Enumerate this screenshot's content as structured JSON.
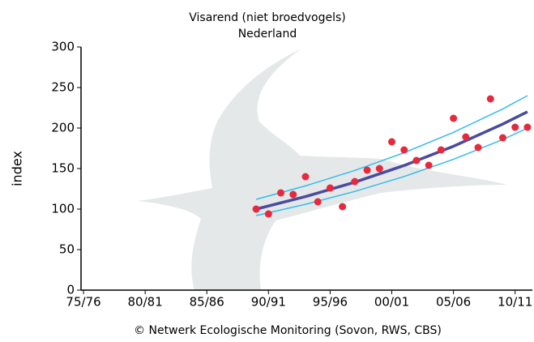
{
  "chart_data": {
    "type": "scatter",
    "title": "Visarend (niet broedvogels)",
    "subtitle": "Nederland",
    "y_label": "index",
    "footer": "© Netwerk Ecologische Monitoring (Sovon, RWS, CBS)",
    "x": [
      89,
      90,
      91,
      92,
      93,
      94,
      95,
      96,
      97,
      98,
      99,
      100,
      101,
      102,
      103,
      104,
      105,
      106,
      107,
      108,
      109,
      110,
      111
    ],
    "values": [
      100,
      94,
      120,
      118,
      140,
      109,
      126,
      103,
      134,
      148,
      150,
      183,
      173,
      160,
      154,
      173,
      212,
      189,
      176,
      236,
      188,
      201,
      201
    ],
    "color": "#e8283c",
    "lines": [
      {
        "x": [
          89,
          93,
          97,
          101,
          105,
          109,
          111
        ],
        "values": [
          112,
          128.6,
          147.7,
          169.6,
          194.7,
          223.6,
          240
        ],
        "color": "#33bbee",
        "width": 1.5
      },
      {
        "x": [
          89,
          93,
          97,
          101,
          105,
          109,
          111
        ],
        "values": [
          92,
          105.9,
          121.8,
          140.2,
          161.4,
          185.8,
          200
        ],
        "color": "#33bbee",
        "width": 1.5
      },
      {
        "x": [
          89,
          93,
          97,
          101,
          105,
          109,
          111
        ],
        "values": [
          100,
          115.4,
          133.2,
          153.8,
          177.5,
          204.9,
          220.1
        ],
        "color": "#4a4aa0",
        "width": 3.5
      }
    ],
    "xlim": [
      74.8,
      111.4
    ],
    "xticks": [
      {
        "value": 75,
        "label": "75/76"
      },
      {
        "value": 80,
        "label": "80/81"
      },
      {
        "value": 85,
        "label": "85/86"
      },
      {
        "value": 90,
        "label": "90/91"
      },
      {
        "value": 95,
        "label": "95/96"
      },
      {
        "value": 100,
        "label": "00/01"
      },
      {
        "value": 105,
        "label": "05/06"
      },
      {
        "value": 110,
        "label": "10/11"
      }
    ],
    "ylim": [
      0,
      300
    ],
    "yticks": [
      0,
      50,
      100,
      150,
      200,
      250,
      300
    ],
    "grid": false
  }
}
